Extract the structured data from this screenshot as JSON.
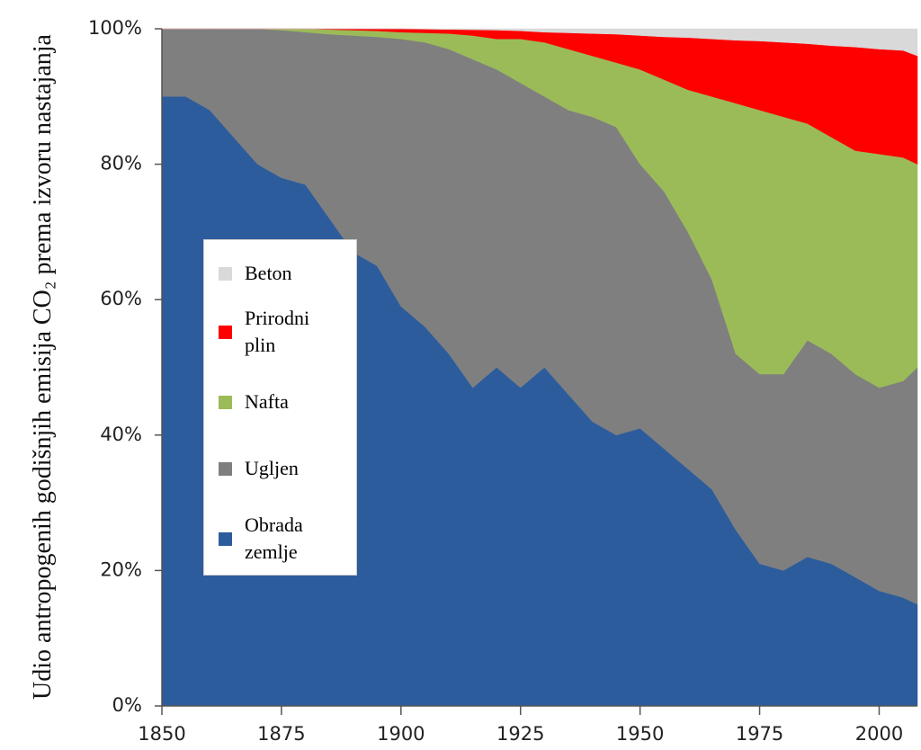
{
  "chart_data": {
    "type": "stacked-area",
    "ylabel": "Udio antropogenih godišnjih emisija CO₂ prema izvoru nastajanja",
    "x": [
      1850,
      1855,
      1860,
      1865,
      1870,
      1875,
      1880,
      1885,
      1890,
      1895,
      1900,
      1905,
      1910,
      1915,
      1920,
      1925,
      1930,
      1935,
      1940,
      1945,
      1950,
      1955,
      1960,
      1965,
      1970,
      1975,
      1980,
      1985,
      1990,
      1995,
      2000,
      2005,
      2008
    ],
    "xlim": [
      1850,
      2008
    ],
    "xticks": [
      1850,
      1875,
      1900,
      1925,
      1950,
      1975,
      2000
    ],
    "ylim": [
      0,
      100
    ],
    "yticks": [
      {
        "value": 0,
        "label": "0%"
      },
      {
        "value": 20,
        "label": "20%"
      },
      {
        "value": 40,
        "label": "40%"
      },
      {
        "value": 60,
        "label": "60%"
      },
      {
        "value": 80,
        "label": "80%"
      },
      {
        "value": 100,
        "label": "100%"
      }
    ],
    "series": [
      {
        "name": "Obrada zemlje",
        "color": "#2d5c9c",
        "values": [
          90,
          90,
          88,
          84,
          80,
          78,
          77,
          72,
          67,
          65,
          59,
          56,
          52,
          47,
          50,
          47,
          50,
          46,
          42,
          40,
          41,
          38,
          35,
          32,
          26,
          21,
          20,
          22,
          21,
          19,
          17,
          16,
          15
        ]
      },
      {
        "name": "Ugljen",
        "color": "#7f7f7f",
        "values": [
          10,
          10,
          12,
          16,
          20,
          21.8,
          22.5,
          27.2,
          32,
          33.8,
          39.5,
          42,
          45,
          48.5,
          44,
          45,
          40,
          42,
          45,
          45.5,
          39,
          38,
          35,
          31,
          26,
          28,
          29,
          32,
          31,
          30,
          30,
          32,
          35
        ]
      },
      {
        "name": "Nafta",
        "color": "#9bbb59",
        "values": [
          0,
          0,
          0,
          0,
          0,
          0.2,
          0.5,
          0.7,
          0.8,
          0.9,
          1,
          1.4,
          2.3,
          3.5,
          4.5,
          6.5,
          8,
          9,
          9,
          9.5,
          14,
          16.5,
          21,
          27,
          37,
          39,
          38,
          32,
          32,
          33,
          34.5,
          33,
          30
        ]
      },
      {
        "name": "Prirodni plin",
        "color": "#ff0000",
        "values": [
          0,
          0,
          0,
          0,
          0,
          0,
          0,
          0.1,
          0.2,
          0.3,
          0.5,
          0.55,
          0.6,
          0.85,
          1.3,
          1.2,
          1.5,
          2.4,
          3.3,
          4.2,
          5,
          6.3,
          7.7,
          8.5,
          9.3,
          10.2,
          11,
          11.8,
          13.5,
          15.3,
          15.5,
          15.8,
          16
        ]
      },
      {
        "name": "Beton",
        "color": "#d9d9d9",
        "values": [
          0,
          0,
          0,
          0,
          0,
          0,
          0,
          0,
          0,
          0,
          0,
          0.05,
          0.1,
          0.15,
          0.2,
          0.3,
          0.5,
          0.6,
          0.7,
          0.8,
          1,
          1.2,
          1.3,
          1.5,
          1.7,
          1.8,
          2,
          2.2,
          2.5,
          2.7,
          3,
          3.2,
          4
        ]
      }
    ]
  }
}
